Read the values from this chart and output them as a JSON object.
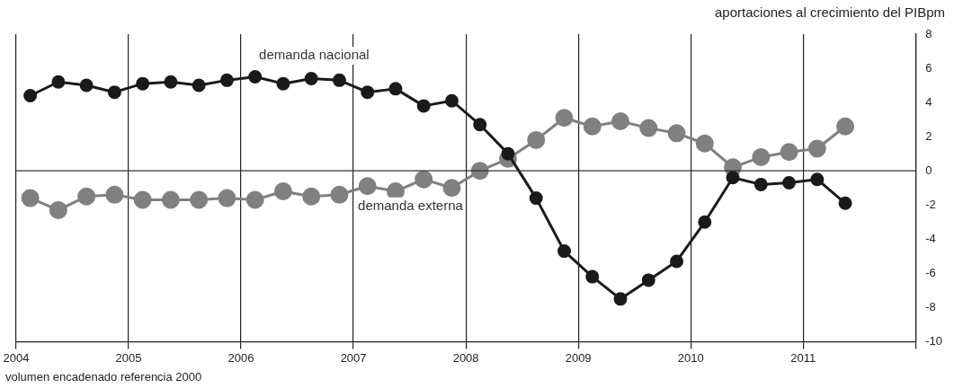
{
  "chart_data": {
    "type": "line",
    "title": "aportaciones al crecimiento del PIBpm",
    "annotations": [
      "volumen encadenado referencia 2000"
    ],
    "x": [
      2004.125,
      2004.375,
      2004.625,
      2004.875,
      2005.125,
      2005.375,
      2005.625,
      2005.875,
      2006.125,
      2006.375,
      2006.625,
      2006.875,
      2007.125,
      2007.375,
      2007.625,
      2007.875,
      2008.125,
      2008.375,
      2008.625,
      2008.875,
      2009.125,
      2009.375,
      2009.625,
      2009.875,
      2010.125,
      2010.375,
      2010.625,
      2010.875,
      2011.125,
      2011.375
    ],
    "series": [
      {
        "name": "demanda nacional",
        "color": "#1a1a1a",
        "values": [
          4.4,
          5.2,
          5.0,
          4.6,
          5.1,
          5.2,
          5.0,
          5.3,
          5.5,
          5.1,
          5.4,
          5.3,
          4.6,
          4.8,
          3.8,
          4.1,
          2.7,
          1.0,
          -1.6,
          -4.7,
          -6.2,
          -7.5,
          -6.4,
          -5.3,
          -3.0,
          -0.4,
          -0.8,
          -0.7,
          -0.5,
          -1.9
        ]
      },
      {
        "name": "demanda externa",
        "color": "#808080",
        "values": [
          -1.6,
          -2.3,
          -1.5,
          -1.4,
          -1.7,
          -1.7,
          -1.7,
          -1.6,
          -1.7,
          -1.2,
          -1.5,
          -1.4,
          -0.9,
          -1.2,
          -0.5,
          -1.0,
          0.0,
          0.7,
          1.8,
          3.1,
          2.6,
          2.9,
          2.5,
          2.2,
          1.6,
          0.2,
          0.8,
          1.1,
          1.3,
          2.6
        ]
      }
    ],
    "xlim": [
      2004,
      2012
    ],
    "xticks": [
      2004,
      2005,
      2006,
      2007,
      2008,
      2009,
      2010,
      2011,
      {
        "value": 2012,
        "label": null
      }
    ],
    "ylim": [
      -10,
      8
    ],
    "yticks": [
      -10,
      -8,
      -6,
      -4,
      -2,
      0,
      2,
      4,
      6,
      8
    ],
    "ref_lines": [
      {
        "axis": "y",
        "value": 0,
        "color": "#333333"
      }
    ],
    "grid": "x",
    "legend": false,
    "marker": "circle",
    "line_style": "solid"
  }
}
